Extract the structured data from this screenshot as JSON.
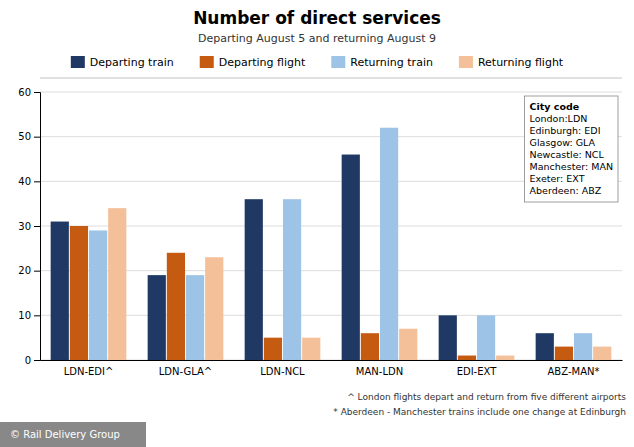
{
  "chart_data": {
    "type": "bar",
    "title": "Number of direct services",
    "subtitle": "Departing August 5 and returning August 9",
    "categories": [
      "LDN-EDI^",
      "LDN-GLA^",
      "LDN-NCL",
      "MAN-LDN",
      "EDI-EXT",
      "ABZ-MAN*"
    ],
    "series": [
      {
        "name": "Departing train",
        "color": "#1f3864",
        "values": [
          31,
          19,
          36,
          46,
          10,
          6
        ]
      },
      {
        "name": "Departing flight",
        "color": "#c55a11",
        "values": [
          30,
          24,
          5,
          6,
          1,
          3
        ]
      },
      {
        "name": "Returning train",
        "color": "#9dc3e6",
        "values": [
          29,
          19,
          36,
          52,
          10,
          6
        ]
      },
      {
        "name": "Returning flight",
        "color": "#f4c09a",
        "values": [
          34,
          23,
          5,
          7,
          1,
          3
        ]
      }
    ],
    "ylim": [
      0,
      60
    ],
    "yticks": [
      0,
      10,
      20,
      30,
      40,
      50,
      60
    ],
    "grid": true,
    "legend": "top",
    "box_title": "City code",
    "box_lines": [
      "London:LDN",
      "Edinburgh: EDI",
      "Glasgow: GLA",
      "Newcastle: NCL",
      "Manchester: MAN",
      "Exeter: EXT",
      "Aberdeen: ABZ"
    ],
    "footnotes": [
      "^ London flights depart and return from five different airports",
      "* Aberdeen - Manchester trains include one change at Edinburgh"
    ],
    "footer": "© Rail Delivery Group"
  }
}
